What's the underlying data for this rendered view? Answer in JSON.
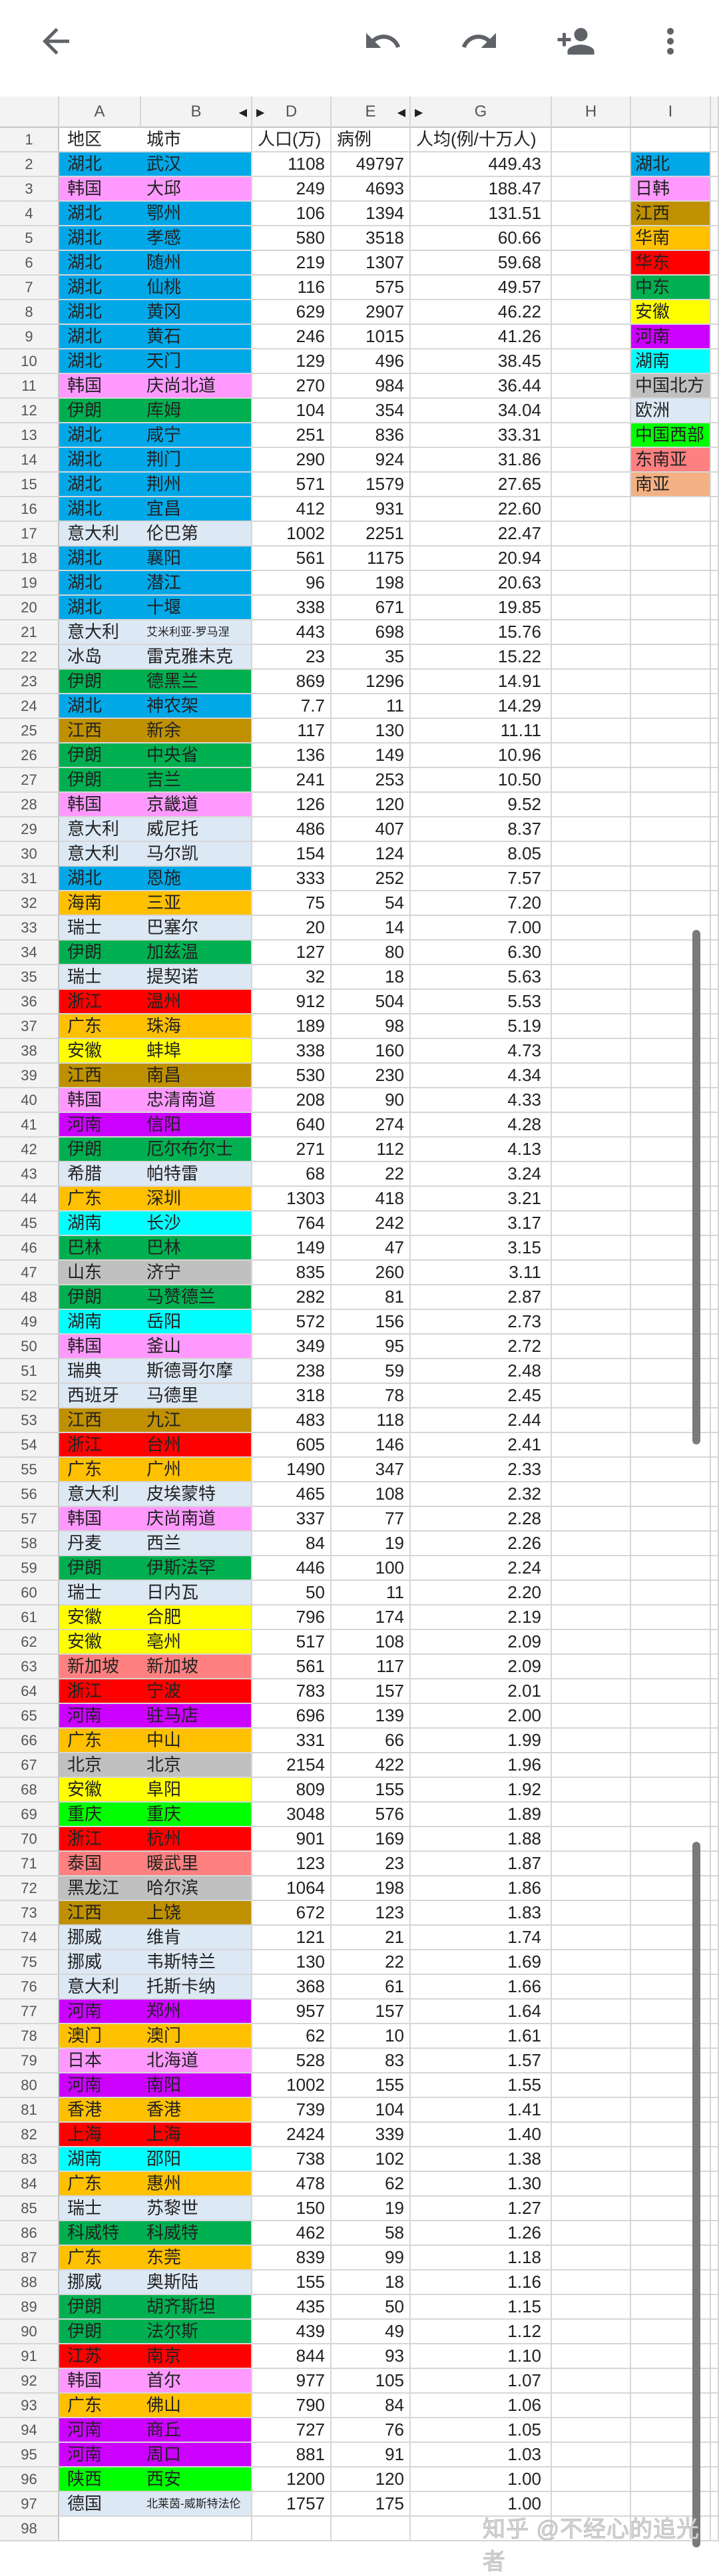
{
  "toolbar": {
    "icons": [
      "back-arrow-icon",
      "undo-icon",
      "redo-icon",
      "add-person-icon",
      "more-vert-icon"
    ]
  },
  "columns": [
    "A",
    "B",
    "D",
    "E",
    "G",
    "H",
    "I"
  ],
  "header": {
    "region": "地区",
    "city": "城市",
    "population": "人口(万)",
    "cases": "病例",
    "rate": "人均(例/十万人)",
    "row_number": "1"
  },
  "colors": {
    "hubei": "#00A8E8",
    "jk": "#FF99FF",
    "jx": "#BF9000",
    "south": "#FFC000",
    "east": "#FF0000",
    "me": "#00B050",
    "ah": "#FFFF00",
    "henan": "#CC00FF",
    "hunan": "#00FFFF",
    "north": "#C0C0C0",
    "eu": "#DDE8F5",
    "west": "#00FF00",
    "sea": "#FF8080",
    "sa": "#F4B183"
  },
  "legend": [
    {
      "label": "湖北",
      "color": "hubei"
    },
    {
      "label": "日韩",
      "color": "jk"
    },
    {
      "label": "江西",
      "color": "jx"
    },
    {
      "label": "华南",
      "color": "south"
    },
    {
      "label": "华东",
      "color": "east"
    },
    {
      "label": "中东",
      "color": "me"
    },
    {
      "label": "安徽",
      "color": "ah"
    },
    {
      "label": "河南",
      "color": "henan"
    },
    {
      "label": "湖南",
      "color": "hunan"
    },
    {
      "label": "中国北方",
      "color": "north"
    },
    {
      "label": "欧洲",
      "color": "eu"
    },
    {
      "label": "中国西部",
      "color": "west"
    },
    {
      "label": "东南亚",
      "color": "sea"
    },
    {
      "label": "南亚",
      "color": "sa"
    }
  ],
  "rows": [
    [
      "湖北",
      "武汉",
      "1108",
      "49797",
      "449.43",
      "hubei"
    ],
    [
      "韩国",
      "大邱",
      "249",
      "4693",
      "188.47",
      "jk"
    ],
    [
      "湖北",
      "鄂州",
      "106",
      "1394",
      "131.51",
      "hubei"
    ],
    [
      "湖北",
      "孝感",
      "580",
      "3518",
      "60.66",
      "hubei"
    ],
    [
      "湖北",
      "随州",
      "219",
      "1307",
      "59.68",
      "hubei"
    ],
    [
      "湖北",
      "仙桃",
      "116",
      "575",
      "49.57",
      "hubei"
    ],
    [
      "湖北",
      "黄冈",
      "629",
      "2907",
      "46.22",
      "hubei"
    ],
    [
      "湖北",
      "黄石",
      "246",
      "1015",
      "41.26",
      "hubei"
    ],
    [
      "湖北",
      "天门",
      "129",
      "496",
      "38.45",
      "hubei"
    ],
    [
      "韩国",
      "庆尚北道",
      "270",
      "984",
      "36.44",
      "jk"
    ],
    [
      "伊朗",
      "库姆",
      "104",
      "354",
      "34.04",
      "me"
    ],
    [
      "湖北",
      "咸宁",
      "251",
      "836",
      "33.31",
      "hubei"
    ],
    [
      "湖北",
      "荆门",
      "290",
      "924",
      "31.86",
      "hubei"
    ],
    [
      "湖北",
      "荆州",
      "571",
      "1579",
      "27.65",
      "hubei"
    ],
    [
      "湖北",
      "宜昌",
      "412",
      "931",
      "22.60",
      "hubei"
    ],
    [
      "意大利",
      "伦巴第",
      "1002",
      "2251",
      "22.47",
      "eu"
    ],
    [
      "湖北",
      "襄阳",
      "561",
      "1175",
      "20.94",
      "hubei"
    ],
    [
      "湖北",
      "潜江",
      "96",
      "198",
      "20.63",
      "hubei"
    ],
    [
      "湖北",
      "十堰",
      "338",
      "671",
      "19.85",
      "hubei"
    ],
    [
      "意大利",
      "艾米利亚-罗马涅",
      "443",
      "698",
      "15.76",
      "eu"
    ],
    [
      "冰岛",
      "雷克雅未克",
      "23",
      "35",
      "15.22",
      "eu"
    ],
    [
      "伊朗",
      "德黑兰",
      "869",
      "1296",
      "14.91",
      "me"
    ],
    [
      "湖北",
      "神农架",
      "7.7",
      "11",
      "14.29",
      "hubei"
    ],
    [
      "江西",
      "新余",
      "117",
      "130",
      "11.11",
      "jx"
    ],
    [
      "伊朗",
      "中央省",
      "136",
      "149",
      "10.96",
      "me"
    ],
    [
      "伊朗",
      "吉兰",
      "241",
      "253",
      "10.50",
      "me"
    ],
    [
      "韩国",
      "京畿道",
      "126",
      "120",
      "9.52",
      "jk"
    ],
    [
      "意大利",
      "威尼托",
      "486",
      "407",
      "8.37",
      "eu"
    ],
    [
      "意大利",
      "马尔凯",
      "154",
      "124",
      "8.05",
      "eu"
    ],
    [
      "湖北",
      "恩施",
      "333",
      "252",
      "7.57",
      "hubei"
    ],
    [
      "海南",
      "三亚",
      "75",
      "54",
      "7.20",
      "south"
    ],
    [
      "瑞士",
      "巴塞尔",
      "20",
      "14",
      "7.00",
      "eu"
    ],
    [
      "伊朗",
      "加兹温",
      "127",
      "80",
      "6.30",
      "me"
    ],
    [
      "瑞士",
      "提契诺",
      "32",
      "18",
      "5.63",
      "eu"
    ],
    [
      "浙江",
      "温州",
      "912",
      "504",
      "5.53",
      "east"
    ],
    [
      "广东",
      "珠海",
      "189",
      "98",
      "5.19",
      "south"
    ],
    [
      "安徽",
      "蚌埠",
      "338",
      "160",
      "4.73",
      "ah"
    ],
    [
      "江西",
      "南昌",
      "530",
      "230",
      "4.34",
      "jx"
    ],
    [
      "韩国",
      "忠清南道",
      "208",
      "90",
      "4.33",
      "jk"
    ],
    [
      "河南",
      "信阳",
      "640",
      "274",
      "4.28",
      "henan"
    ],
    [
      "伊朗",
      "厄尔布尔士",
      "271",
      "112",
      "4.13",
      "me"
    ],
    [
      "希腊",
      "帕特雷",
      "68",
      "22",
      "3.24",
      "eu"
    ],
    [
      "广东",
      "深圳",
      "1303",
      "418",
      "3.21",
      "south"
    ],
    [
      "湖南",
      "长沙",
      "764",
      "242",
      "3.17",
      "hunan"
    ],
    [
      "巴林",
      "巴林",
      "149",
      "47",
      "3.15",
      "me"
    ],
    [
      "山东",
      "济宁",
      "835",
      "260",
      "3.11",
      "north"
    ],
    [
      "伊朗",
      "马赞德兰",
      "282",
      "81",
      "2.87",
      "me"
    ],
    [
      "湖南",
      "岳阳",
      "572",
      "156",
      "2.73",
      "hunan"
    ],
    [
      "韩国",
      "釜山",
      "349",
      "95",
      "2.72",
      "jk"
    ],
    [
      "瑞典",
      "斯德哥尔摩",
      "238",
      "59",
      "2.48",
      "eu"
    ],
    [
      "西班牙",
      "马德里",
      "318",
      "78",
      "2.45",
      "eu"
    ],
    [
      "江西",
      "九江",
      "483",
      "118",
      "2.44",
      "jx"
    ],
    [
      "浙江",
      "台州",
      "605",
      "146",
      "2.41",
      "east"
    ],
    [
      "广东",
      "广州",
      "1490",
      "347",
      "2.33",
      "south"
    ],
    [
      "意大利",
      "皮埃蒙特",
      "465",
      "108",
      "2.32",
      "eu"
    ],
    [
      "韩国",
      "庆尚南道",
      "337",
      "77",
      "2.28",
      "jk"
    ],
    [
      "丹麦",
      "西兰",
      "84",
      "19",
      "2.26",
      "eu"
    ],
    [
      "伊朗",
      "伊斯法罕",
      "446",
      "100",
      "2.24",
      "me"
    ],
    [
      "瑞士",
      "日内瓦",
      "50",
      "11",
      "2.20",
      "eu"
    ],
    [
      "安徽",
      "合肥",
      "796",
      "174",
      "2.19",
      "ah"
    ],
    [
      "安徽",
      "亳州",
      "517",
      "108",
      "2.09",
      "ah"
    ],
    [
      "新加坡",
      "新加坡",
      "561",
      "117",
      "2.09",
      "sea"
    ],
    [
      "浙江",
      "宁波",
      "783",
      "157",
      "2.01",
      "east"
    ],
    [
      "河南",
      "驻马店",
      "696",
      "139",
      "2.00",
      "henan"
    ],
    [
      "广东",
      "中山",
      "331",
      "66",
      "1.99",
      "south"
    ],
    [
      "北京",
      "北京",
      "2154",
      "422",
      "1.96",
      "north"
    ],
    [
      "安徽",
      "阜阳",
      "809",
      "155",
      "1.92",
      "ah"
    ],
    [
      "重庆",
      "重庆",
      "3048",
      "576",
      "1.89",
      "west"
    ],
    [
      "浙江",
      "杭州",
      "901",
      "169",
      "1.88",
      "east"
    ],
    [
      "泰国",
      "暖武里",
      "123",
      "23",
      "1.87",
      "sea"
    ],
    [
      "黑龙江",
      "哈尔滨",
      "1064",
      "198",
      "1.86",
      "north"
    ],
    [
      "江西",
      "上饶",
      "672",
      "123",
      "1.83",
      "jx"
    ],
    [
      "挪威",
      "维肯",
      "121",
      "21",
      "1.74",
      "eu"
    ],
    [
      "挪威",
      "韦斯特兰",
      "130",
      "22",
      "1.69",
      "eu"
    ],
    [
      "意大利",
      "托斯卡纳",
      "368",
      "61",
      "1.66",
      "eu"
    ],
    [
      "河南",
      "郑州",
      "957",
      "157",
      "1.64",
      "henan"
    ],
    [
      "澳门",
      "澳门",
      "62",
      "10",
      "1.61",
      "south"
    ],
    [
      "日本",
      "北海道",
      "528",
      "83",
      "1.57",
      "jk"
    ],
    [
      "河南",
      "南阳",
      "1002",
      "155",
      "1.55",
      "henan"
    ],
    [
      "香港",
      "香港",
      "739",
      "104",
      "1.41",
      "south"
    ],
    [
      "上海",
      "上海",
      "2424",
      "339",
      "1.40",
      "east"
    ],
    [
      "湖南",
      "邵阳",
      "738",
      "102",
      "1.38",
      "hunan"
    ],
    [
      "广东",
      "惠州",
      "478",
      "62",
      "1.30",
      "south"
    ],
    [
      "瑞士",
      "苏黎世",
      "150",
      "19",
      "1.27",
      "eu"
    ],
    [
      "科威特",
      "科威特",
      "462",
      "58",
      "1.26",
      "me"
    ],
    [
      "广东",
      "东莞",
      "839",
      "99",
      "1.18",
      "south"
    ],
    [
      "挪威",
      "奥斯陆",
      "155",
      "18",
      "1.16",
      "eu"
    ],
    [
      "伊朗",
      "胡齐斯坦",
      "435",
      "50",
      "1.15",
      "me"
    ],
    [
      "伊朗",
      "法尔斯",
      "439",
      "49",
      "1.12",
      "me"
    ],
    [
      "江苏",
      "南京",
      "844",
      "93",
      "1.10",
      "east"
    ],
    [
      "韩国",
      "首尔",
      "977",
      "105",
      "1.07",
      "jk"
    ],
    [
      "广东",
      "佛山",
      "790",
      "84",
      "1.06",
      "south"
    ],
    [
      "河南",
      "商丘",
      "727",
      "76",
      "1.05",
      "henan"
    ],
    [
      "河南",
      "周口",
      "881",
      "91",
      "1.03",
      "henan"
    ],
    [
      "陕西",
      "西安",
      "1200",
      "120",
      "1.00",
      "west"
    ],
    [
      "德国",
      "北莱茵-威斯特法伦",
      "1757",
      "175",
      "1.00",
      "eu"
    ]
  ],
  "empty_row_number": "98",
  "watermark": "知乎 @不经心的追光者"
}
